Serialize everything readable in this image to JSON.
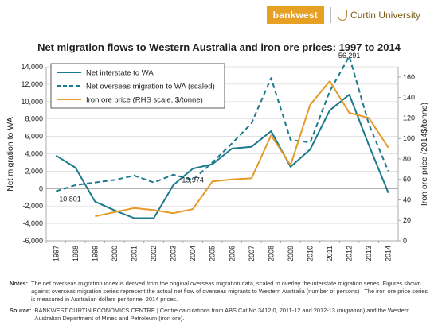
{
  "header": {
    "brand_left": "bankwest",
    "brand_right": "Curtin University"
  },
  "colors": {
    "interstate": "#1b7a8c",
    "overseas": "#1b7a8c",
    "iron": "#e69a28",
    "bankwest": "#e6a024"
  },
  "chart_data": {
    "type": "line",
    "title": "Net migration flows to Western Australia and iron ore prices: 1997 to 2014",
    "ylabel": "Net migration to WA",
    "y2label": "Iron ore price (2014$/tonne)",
    "categories": [
      "1997",
      "1998",
      "1999",
      "2000",
      "2001",
      "2002",
      "2003",
      "2004",
      "2005",
      "2006",
      "2007",
      "2008",
      "2009",
      "2010",
      "2011",
      "2012",
      "2013",
      "2014"
    ],
    "ylim": [
      -6000,
      14000
    ],
    "yticks": [
      "-6,000",
      "-4,000",
      "-2,000",
      "0",
      "2,000",
      "4,000",
      "6,000",
      "8,000",
      "10,000",
      "12,000",
      "14,000"
    ],
    "y2lim": [
      0,
      170
    ],
    "y2ticks": [
      "0",
      "20",
      "40",
      "60",
      "80",
      "100",
      "120",
      "140",
      "160"
    ],
    "legend_position": "top-left",
    "series": [
      {
        "name": "Net interstate to WA",
        "axis": "left",
        "style": "solid",
        "values": [
          3800,
          2400,
          -1500,
          -2500,
          -3400,
          -3400,
          400,
          2300,
          2800,
          4600,
          4800,
          6600,
          2500,
          4500,
          9000,
          10800,
          5000,
          -500
        ]
      },
      {
        "name": "Net overseas migration to WA (scaled)",
        "axis": "left",
        "style": "dashed",
        "values": [
          -300,
          400,
          700,
          1000,
          1500,
          700,
          1600,
          1000,
          3000,
          5200,
          7500,
          12700,
          5600,
          5300,
          11200,
          15200,
          7400,
          2000
        ]
      },
      {
        "name": "Iron ore price (RHS scale, $/tonne)",
        "axis": "right",
        "style": "solid",
        "values": [
          null,
          null,
          24,
          28,
          32,
          30,
          27,
          31,
          58,
          60,
          61,
          103,
          74,
          133,
          156,
          125,
          120,
          91
        ]
      }
    ],
    "annotations": [
      {
        "text": "10,801",
        "x": "1997",
        "y": -1200
      },
      {
        "text": "13,974",
        "x": "2004",
        "y": 1000
      },
      {
        "text": "56,291",
        "x": "2012",
        "y": 15300
      }
    ]
  },
  "notes": {
    "label": "Notes:",
    "text": "The net overseas migration index is derived from the original overseas migration data, scaled to overlay the interstate migration series.  Figures shown against overseas migration series represent the actual net flow of overseas migrants  to Western Australia (number of persons) . The iron ore price series is measured in Australian dollars per tonne, 2014 prices.",
    "source_label": "Source:",
    "source_text": "BANKWEST CURTIN ECONOMICS CENTRE | Centre calculations from ABS Cat No 3412.0, 2011-12 and 2012-13 (migration) and the Western Australian Department of Mines and Petroleum (iron ore)."
  }
}
